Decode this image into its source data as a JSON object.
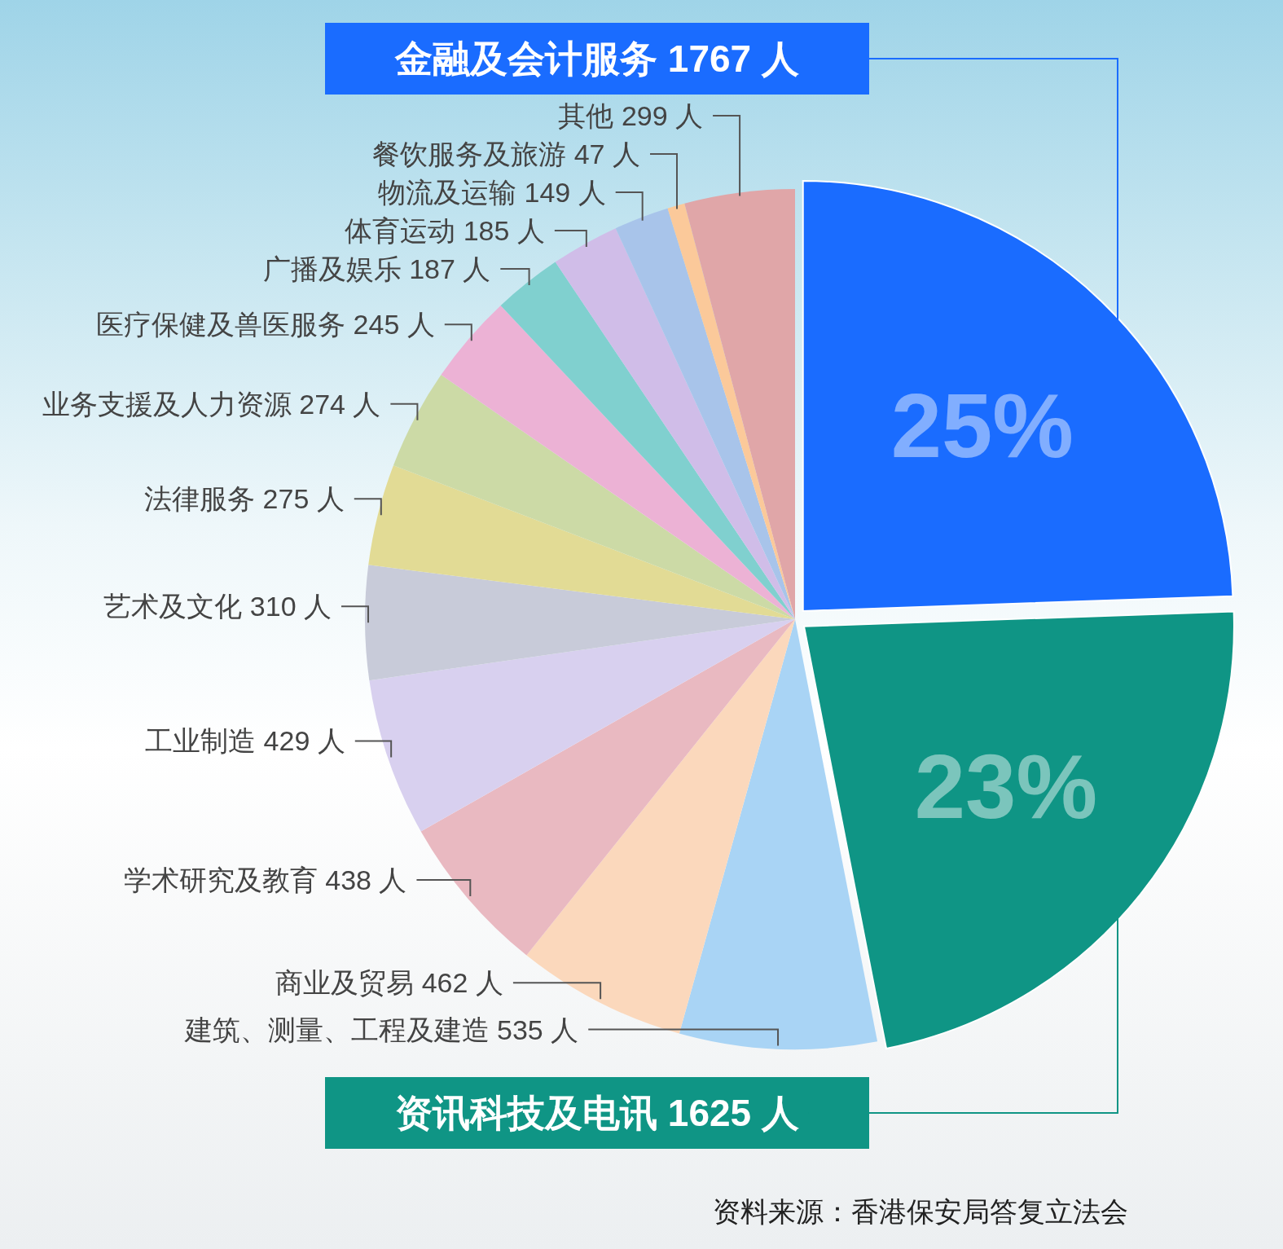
{
  "chart_data": {
    "type": "pie",
    "categories": [
      "金融及会计服务 1767 人",
      "资讯科技及电讯 1625 人",
      "建筑、测量、工程及建造 535 人",
      "商业及贸易 462 人",
      "学术研究及教育 438 人",
      "工业制造 429 人",
      "艺术及文化 310 人",
      "法律服务 275 人",
      "业务支援及人力资源 274 人",
      "医疗保健及兽医服务 245 人",
      "广播及娱乐 187 人",
      "体育运动 185 人",
      "物流及运输 149 人",
      "餐饮服务及旅游 47 人",
      "其他 299 人"
    ],
    "values": [
      1767,
      1625,
      535,
      462,
      438,
      429,
      310,
      275,
      274,
      245,
      187,
      185,
      149,
      47,
      299
    ],
    "colors": [
      "#1a6cff",
      "#0f9585",
      "#a9d4f5",
      "#fbd8bc",
      "#e9b9c1",
      "#d8d0ef",
      "#c8cbd9",
      "#e2db95",
      "#ccdaa6",
      "#ecb2d5",
      "#80d0cf",
      "#d0bde8",
      "#a8c4ea",
      "#fbc99a",
      "#e0a6a8"
    ],
    "annotations": [
      {
        "text": "25%",
        "x": "金融及会计服务 1767 人"
      },
      {
        "text": "23%",
        "x": "资讯科技及电讯 1625 人"
      },
      "资料来源：香港保安局答复立法会"
    ]
  }
}
